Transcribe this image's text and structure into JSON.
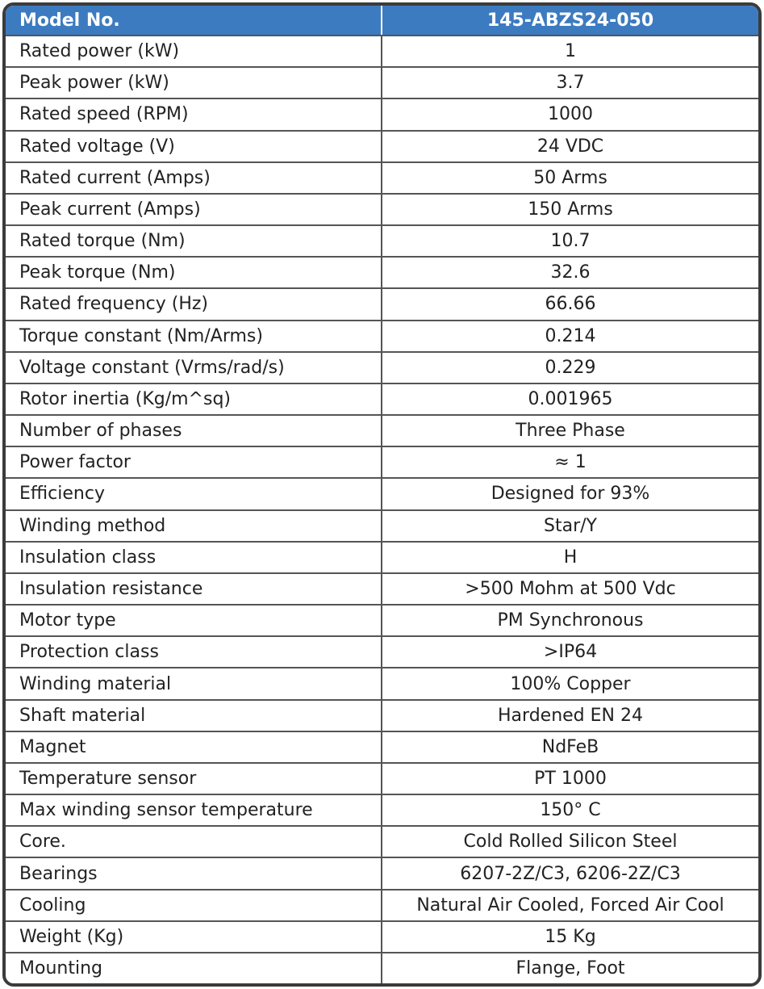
{
  "table": {
    "header": [
      "Model No.",
      "145-ABZS24-050"
    ],
    "rows": [
      [
        "Rated power (kW)",
        "1"
      ],
      [
        "Peak power (kW)",
        "3.7"
      ],
      [
        "Rated speed (RPM)",
        "1000"
      ],
      [
        "Rated voltage (V)",
        "24 VDC"
      ],
      [
        "Rated current (Amps)",
        "50 Arms"
      ],
      [
        "Peak current (Amps)",
        "150 Arms"
      ],
      [
        "Rated torque (Nm)",
        "10.7"
      ],
      [
        "Peak torque (Nm)",
        "32.6"
      ],
      [
        "Rated frequency (Hz)",
        "66.66"
      ],
      [
        "Torque constant (Nm/Arms)",
        "0.214"
      ],
      [
        "Voltage constant (Vrms/rad/s)",
        "0.229"
      ],
      [
        "Rotor inertia (Kg/m^sq)",
        "0.001965"
      ],
      [
        "Number of phases",
        "Three Phase"
      ],
      [
        "Power factor",
        "≈ 1"
      ],
      [
        "Efficiency",
        "Designed for 93%"
      ],
      [
        "Winding method",
        "Star/Y"
      ],
      [
        "Insulation class",
        "H"
      ],
      [
        "Insulation resistance",
        ">500 Mohm at 500 Vdc"
      ],
      [
        "Motor type",
        "PM Synchronous"
      ],
      [
        "Protection class",
        ">IP64"
      ],
      [
        "Winding material",
        "100% Copper"
      ],
      [
        "Shaft material",
        "Hardened EN 24"
      ],
      [
        "Magnet",
        "NdFeB"
      ],
      [
        "Temperature sensor",
        "PT 1000"
      ],
      [
        "Max winding sensor temperature",
        "150° C"
      ],
      [
        "Core.",
        "Cold Rolled Silicon Steel"
      ],
      [
        "Bearings",
        "6207-2Z/C3, 6206-2Z/C3"
      ],
      [
        "Cooling",
        "Natural Air Cooled, Forced Air Cool"
      ],
      [
        "Weight (Kg)",
        "15 Kg"
      ],
      [
        "Mounting",
        "Flange, Foot"
      ]
    ]
  }
}
